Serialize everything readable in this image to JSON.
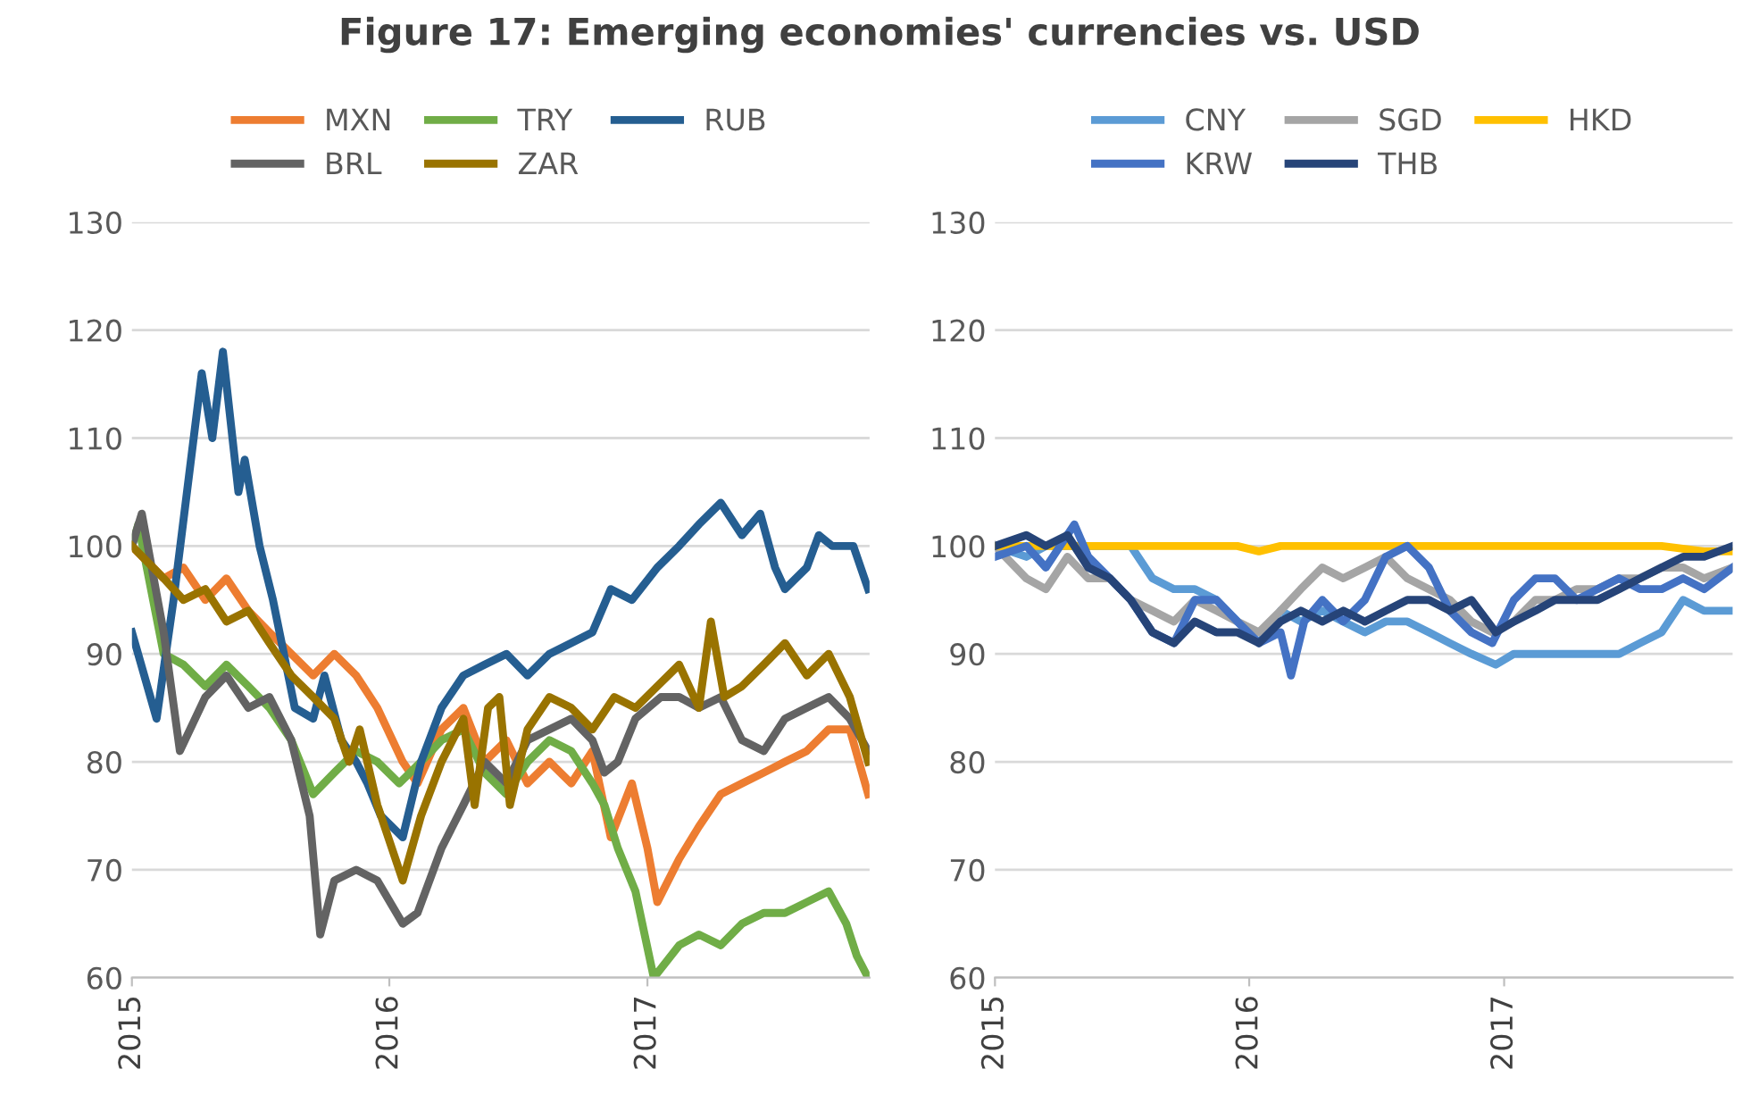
{
  "chart_data": [
    {
      "type": "line",
      "title": "Figure 17: Emerging economies' currencies vs. USD",
      "legend": "top",
      "grid": "y",
      "line_style": "solid",
      "marker": "none",
      "xlim": [
        "2015-01-01",
        "2017-11-12"
      ],
      "xticks": [
        {
          "value": "2015-01-01",
          "label": "2015"
        },
        {
          "value": "2016-01-01",
          "label": "2016"
        },
        {
          "value": "2017-01-01",
          "label": "2017"
        }
      ],
      "ylim": [
        60,
        130
      ],
      "yticks": [
        60,
        70,
        80,
        90,
        100,
        110,
        120,
        130
      ],
      "series": [
        {
          "name": "MXN",
          "color": "#ed7d31",
          "x": [
            "2015-01-01",
            "2015-02-15",
            "2015-03-15",
            "2015-04-15",
            "2015-05-15",
            "2015-06-15",
            "2015-07-15",
            "2015-08-15",
            "2015-09-15",
            "2015-10-15",
            "2015-11-15",
            "2015-12-15",
            "2016-01-20",
            "2016-02-10",
            "2016-03-15",
            "2016-04-15",
            "2016-05-15",
            "2016-06-15",
            "2016-07-15",
            "2016-08-15",
            "2016-09-15",
            "2016-10-15",
            "2016-11-10",
            "2016-12-10",
            "2017-01-01",
            "2017-01-15",
            "2017-02-15",
            "2017-03-15",
            "2017-04-15",
            "2017-05-15",
            "2017-06-15",
            "2017-07-15",
            "2017-08-15",
            "2017-09-15",
            "2017-10-15",
            "2017-11-10"
          ],
          "values": [
            100,
            97,
            98,
            95,
            97,
            94,
            92,
            90,
            88,
            90,
            88,
            85,
            80,
            78,
            83,
            85,
            80,
            82,
            78,
            80,
            78,
            81,
            73,
            78,
            72,
            67,
            71,
            74,
            77,
            78,
            79,
            80,
            81,
            83,
            83,
            77
          ]
        },
        {
          "name": "TRY",
          "color": "#70ad47",
          "x": [
            "2015-01-01",
            "2015-01-10",
            "2015-02-15",
            "2015-03-15",
            "2015-04-15",
            "2015-05-15",
            "2015-06-15",
            "2015-07-15",
            "2015-08-15",
            "2015-09-15",
            "2015-10-15",
            "2015-11-15",
            "2015-12-15",
            "2016-01-15",
            "2016-02-15",
            "2016-03-15",
            "2016-04-15",
            "2016-05-15",
            "2016-06-15",
            "2016-07-15",
            "2016-08-15",
            "2016-09-15",
            "2016-10-15",
            "2016-11-01",
            "2016-11-20",
            "2016-12-15",
            "2017-01-10",
            "2017-02-15",
            "2017-03-15",
            "2017-04-15",
            "2017-05-15",
            "2017-06-15",
            "2017-07-15",
            "2017-08-15",
            "2017-09-15",
            "2017-10-10",
            "2017-10-25",
            "2017-11-10"
          ],
          "values": [
            100,
            102,
            90,
            89,
            87,
            89,
            87,
            85,
            82,
            77,
            79,
            81,
            80,
            78,
            80,
            82,
            83,
            79,
            77,
            80,
            82,
            81,
            78,
            76,
            72,
            68,
            60,
            63,
            64,
            63,
            65,
            66,
            66,
            67,
            68,
            65,
            62,
            60
          ]
        },
        {
          "name": "RUB",
          "color": "#255e91",
          "x": [
            "2015-01-01",
            "2015-02-05",
            "2015-03-01",
            "2015-04-10",
            "2015-04-25",
            "2015-05-10",
            "2015-06-01",
            "2015-06-10",
            "2015-07-01",
            "2015-07-20",
            "2015-08-20",
            "2015-09-15",
            "2015-10-01",
            "2015-10-25",
            "2015-11-15",
            "2015-12-01",
            "2015-12-20",
            "2016-01-20",
            "2016-02-15",
            "2016-03-15",
            "2016-04-15",
            "2016-05-15",
            "2016-06-15",
            "2016-07-15",
            "2016-08-15",
            "2016-09-15",
            "2016-10-15",
            "2016-11-10",
            "2016-12-10",
            "2017-01-15",
            "2017-02-15",
            "2017-03-15",
            "2017-04-15",
            "2017-05-15",
            "2017-06-10",
            "2017-07-01",
            "2017-07-15",
            "2017-08-15",
            "2017-09-01",
            "2017-09-20",
            "2017-10-20",
            "2017-11-10"
          ],
          "values": [
            92,
            84,
            95,
            116,
            110,
            118,
            105,
            108,
            100,
            95,
            85,
            84,
            88,
            82,
            80,
            78,
            75,
            73,
            80,
            85,
            88,
            89,
            90,
            88,
            90,
            91,
            92,
            96,
            95,
            98,
            100,
            102,
            104,
            101,
            103,
            98,
            96,
            98,
            101,
            100,
            100,
            96
          ]
        },
        {
          "name": "BRL",
          "color": "#636363",
          "x": [
            "2015-01-01",
            "2015-01-15",
            "2015-02-15",
            "2015-03-10",
            "2015-04-15",
            "2015-05-15",
            "2015-06-15",
            "2015-07-15",
            "2015-08-15",
            "2015-09-10",
            "2015-09-25",
            "2015-10-15",
            "2015-11-15",
            "2015-12-15",
            "2016-01-20",
            "2016-02-10",
            "2016-03-15",
            "2016-04-15",
            "2016-05-15",
            "2016-06-15",
            "2016-07-15",
            "2016-08-15",
            "2016-09-15",
            "2016-10-15",
            "2016-11-01",
            "2016-11-20",
            "2016-12-15",
            "2017-01-20",
            "2017-02-15",
            "2017-03-15",
            "2017-04-15",
            "2017-05-15",
            "2017-06-15",
            "2017-07-15",
            "2017-08-15",
            "2017-09-15",
            "2017-10-15",
            "2017-11-10"
          ],
          "values": [
            100,
            103,
            92,
            81,
            86,
            88,
            85,
            86,
            82,
            75,
            64,
            69,
            70,
            69,
            65,
            66,
            72,
            76,
            80,
            78,
            82,
            83,
            84,
            82,
            79,
            80,
            84,
            86,
            86,
            85,
            86,
            82,
            81,
            84,
            85,
            86,
            84,
            81
          ]
        },
        {
          "name": "ZAR",
          "color": "#997300",
          "x": [
            "2015-01-01",
            "2015-02-15",
            "2015-03-15",
            "2015-04-15",
            "2015-05-15",
            "2015-06-15",
            "2015-07-15",
            "2015-08-15",
            "2015-09-15",
            "2015-10-15",
            "2015-11-05",
            "2015-11-20",
            "2015-12-15",
            "2016-01-20",
            "2016-02-15",
            "2016-03-15",
            "2016-04-15",
            "2016-05-01",
            "2016-05-20",
            "2016-06-05",
            "2016-06-20",
            "2016-07-15",
            "2016-08-15",
            "2016-09-15",
            "2016-10-15",
            "2016-11-15",
            "2016-12-15",
            "2017-01-15",
            "2017-02-15",
            "2017-03-15",
            "2017-04-01",
            "2017-04-20",
            "2017-05-15",
            "2017-06-15",
            "2017-07-15",
            "2017-08-15",
            "2017-09-15",
            "2017-10-15",
            "2017-11-10"
          ],
          "values": [
            100,
            97,
            95,
            96,
            93,
            94,
            91,
            88,
            86,
            84,
            80,
            83,
            76,
            69,
            75,
            80,
            84,
            76,
            85,
            86,
            76,
            83,
            86,
            85,
            83,
            86,
            85,
            87,
            89,
            85,
            93,
            86,
            87,
            89,
            91,
            88,
            90,
            86,
            80
          ]
        }
      ]
    },
    {
      "type": "line",
      "legend": "top",
      "grid": "y",
      "line_style": "solid",
      "marker": "none",
      "xlim": [
        "2015-01-01",
        "2017-11-25"
      ],
      "xticks": [
        {
          "value": "2015-01-01",
          "label": "2015"
        },
        {
          "value": "2016-01-01",
          "label": "2016"
        },
        {
          "value": "2017-01-01",
          "label": "2017"
        }
      ],
      "ylim": [
        60,
        130
      ],
      "yticks": [
        60,
        70,
        80,
        90,
        100,
        110,
        120,
        130
      ],
      "series": [
        {
          "name": "CNY",
          "color": "#5b9bd5",
          "x": [
            "2015-01-01",
            "2015-02-15",
            "2015-03-15",
            "2015-04-15",
            "2015-05-15",
            "2015-07-15",
            "2015-08-15",
            "2015-09-15",
            "2015-10-15",
            "2015-11-15",
            "2015-12-15",
            "2016-01-15",
            "2016-02-15",
            "2016-03-15",
            "2016-04-15",
            "2016-05-15",
            "2016-06-15",
            "2016-07-15",
            "2016-08-15",
            "2016-09-15",
            "2016-10-15",
            "2016-11-15",
            "2016-12-20",
            "2017-01-15",
            "2017-02-15",
            "2017-03-15",
            "2017-04-15",
            "2017-05-15",
            "2017-06-15",
            "2017-07-15",
            "2017-08-15",
            "2017-09-15",
            "2017-10-15",
            "2017-11-25"
          ],
          "values": [
            100,
            99,
            100,
            100,
            100,
            100,
            97,
            96,
            96,
            95,
            93,
            91,
            94,
            93,
            94,
            93,
            92,
            93,
            93,
            92,
            91,
            90,
            89,
            90,
            90,
            90,
            90,
            90,
            90,
            91,
            92,
            95,
            94,
            94
          ]
        },
        {
          "name": "SGD",
          "color": "#a5a5a5",
          "x": [
            "2015-01-01",
            "2015-02-15",
            "2015-03-15",
            "2015-04-15",
            "2015-05-15",
            "2015-06-15",
            "2015-07-15",
            "2015-08-15",
            "2015-09-15",
            "2015-10-15",
            "2015-11-15",
            "2015-12-15",
            "2016-01-15",
            "2016-02-15",
            "2016-03-15",
            "2016-04-15",
            "2016-05-15",
            "2016-06-15",
            "2016-07-15",
            "2016-08-15",
            "2016-09-15",
            "2016-10-15",
            "2016-11-15",
            "2016-12-15",
            "2017-01-15",
            "2017-02-15",
            "2017-03-15",
            "2017-04-15",
            "2017-05-15",
            "2017-06-15",
            "2017-07-15",
            "2017-08-15",
            "2017-09-15",
            "2017-10-15",
            "2017-11-25"
          ],
          "values": [
            100,
            97,
            96,
            99,
            97,
            97,
            95,
            94,
            93,
            95,
            94,
            93,
            92,
            94,
            96,
            98,
            97,
            98,
            99,
            97,
            96,
            95,
            93,
            92,
            93,
            95,
            95,
            96,
            96,
            97,
            97,
            98,
            98,
            97,
            98
          ]
        },
        {
          "name": "HKD",
          "color": "#ffc000",
          "x": [
            "2015-01-01",
            "2015-06-15",
            "2015-12-15",
            "2016-01-15",
            "2016-02-15",
            "2016-08-15",
            "2017-03-15",
            "2017-08-15",
            "2017-10-15",
            "2017-11-25"
          ],
          "values": [
            100,
            100,
            100,
            99.5,
            100,
            100,
            100,
            100,
            99.5,
            99.5
          ]
        },
        {
          "name": "KRW",
          "color": "#4472c4",
          "x": [
            "2015-01-01",
            "2015-02-15",
            "2015-03-15",
            "2015-04-25",
            "2015-05-15",
            "2015-06-15",
            "2015-07-15",
            "2015-08-15",
            "2015-09-15",
            "2015-10-15",
            "2015-11-15",
            "2015-12-15",
            "2016-01-15",
            "2016-02-15",
            "2016-03-01",
            "2016-03-20",
            "2016-04-15",
            "2016-05-15",
            "2016-06-15",
            "2016-07-15",
            "2016-08-15",
            "2016-09-15",
            "2016-10-15",
            "2016-11-15",
            "2016-12-15",
            "2017-01-15",
            "2017-02-15",
            "2017-03-15",
            "2017-04-15",
            "2017-05-15",
            "2017-06-15",
            "2017-07-15",
            "2017-08-15",
            "2017-09-15",
            "2017-10-15",
            "2017-11-25"
          ],
          "values": [
            99,
            100,
            98,
            102,
            99,
            97,
            95,
            92,
            91,
            95,
            95,
            93,
            91,
            92,
            88,
            93,
            95,
            93,
            95,
            99,
            100,
            98,
            94,
            92,
            91,
            95,
            97,
            97,
            95,
            96,
            97,
            96,
            96,
            97,
            96,
            98
          ]
        },
        {
          "name": "THB",
          "color": "#264478",
          "x": [
            "2015-01-01",
            "2015-02-15",
            "2015-03-15",
            "2015-04-15",
            "2015-05-15",
            "2015-06-15",
            "2015-07-15",
            "2015-08-15",
            "2015-09-15",
            "2015-10-15",
            "2015-11-15",
            "2015-12-15",
            "2016-01-15",
            "2016-02-15",
            "2016-03-15",
            "2016-04-15",
            "2016-05-15",
            "2016-06-15",
            "2016-07-15",
            "2016-08-15",
            "2016-09-15",
            "2016-10-15",
            "2016-11-15",
            "2016-12-20",
            "2017-01-15",
            "2017-02-15",
            "2017-03-15",
            "2017-04-15",
            "2017-05-15",
            "2017-06-15",
            "2017-07-15",
            "2017-08-15",
            "2017-09-15",
            "2017-10-15",
            "2017-11-25"
          ],
          "values": [
            100,
            101,
            100,
            101,
            98,
            97,
            95,
            92,
            91,
            93,
            92,
            92,
            91,
            93,
            94,
            93,
            94,
            93,
            94,
            95,
            95,
            94,
            95,
            92,
            93,
            94,
            95,
            95,
            95,
            96,
            97,
            98,
            99,
            99,
            100
          ]
        }
      ]
    }
  ]
}
